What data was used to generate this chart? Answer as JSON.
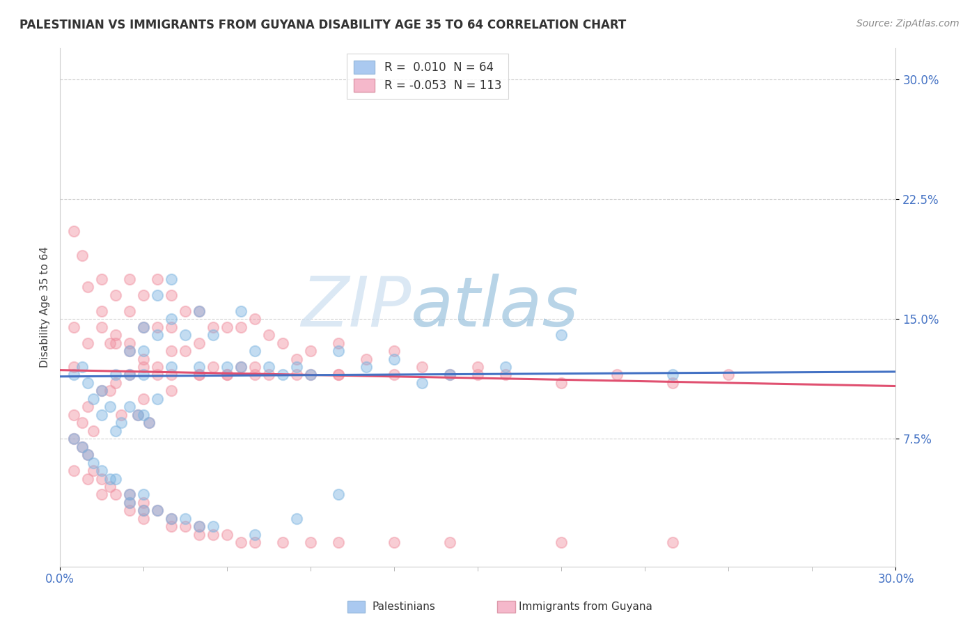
{
  "title": "PALESTINIAN VS IMMIGRANTS FROM GUYANA DISABILITY AGE 35 TO 64 CORRELATION CHART",
  "source": "Source: ZipAtlas.com",
  "ylabel": "Disability Age 35 to 64",
  "ytick_vals": [
    0.075,
    0.15,
    0.225,
    0.3
  ],
  "xlim": [
    0.0,
    0.3
  ],
  "ylim": [
    -0.005,
    0.32
  ],
  "legend1_label": "R =  0.010  N = 64",
  "legend2_label": "R = -0.053  N = 113",
  "legend1_color": "#aac9f0",
  "legend2_color": "#f5b8cb",
  "dot_color_blue": "#7ab3e0",
  "dot_color_pink": "#f090a0",
  "trend_color_blue": "#4472c4",
  "trend_color_pink": "#e05070",
  "watermark_zip": "ZIP",
  "watermark_atlas": "atlas",
  "blue_trend_start_y": 0.114,
  "blue_trend_end_y": 0.117,
  "pink_trend_start_y": 0.118,
  "pink_trend_end_y": 0.108,
  "blue_x": [
    0.005,
    0.008,
    0.01,
    0.012,
    0.015,
    0.015,
    0.018,
    0.02,
    0.02,
    0.022,
    0.025,
    0.025,
    0.025,
    0.028,
    0.03,
    0.03,
    0.03,
    0.03,
    0.032,
    0.035,
    0.035,
    0.035,
    0.04,
    0.04,
    0.04,
    0.045,
    0.05,
    0.05,
    0.055,
    0.06,
    0.065,
    0.065,
    0.07,
    0.075,
    0.08,
    0.085,
    0.09,
    0.1,
    0.11,
    0.12,
    0.13,
    0.14,
    0.16,
    0.18,
    0.22,
    0.005,
    0.008,
    0.01,
    0.012,
    0.015,
    0.018,
    0.02,
    0.025,
    0.025,
    0.03,
    0.03,
    0.035,
    0.04,
    0.045,
    0.05,
    0.055,
    0.07,
    0.085,
    0.1
  ],
  "blue_y": [
    0.115,
    0.12,
    0.11,
    0.1,
    0.105,
    0.09,
    0.095,
    0.08,
    0.115,
    0.085,
    0.13,
    0.115,
    0.095,
    0.09,
    0.145,
    0.13,
    0.115,
    0.09,
    0.085,
    0.165,
    0.14,
    0.1,
    0.175,
    0.15,
    0.12,
    0.14,
    0.155,
    0.12,
    0.14,
    0.12,
    0.155,
    0.12,
    0.13,
    0.12,
    0.115,
    0.12,
    0.115,
    0.13,
    0.12,
    0.125,
    0.11,
    0.115,
    0.12,
    0.14,
    0.115,
    0.075,
    0.07,
    0.065,
    0.06,
    0.055,
    0.05,
    0.05,
    0.04,
    0.035,
    0.04,
    0.03,
    0.03,
    0.025,
    0.025,
    0.02,
    0.02,
    0.015,
    0.025,
    0.04
  ],
  "pink_x": [
    0.005,
    0.005,
    0.005,
    0.008,
    0.01,
    0.01,
    0.012,
    0.015,
    0.015,
    0.015,
    0.018,
    0.018,
    0.02,
    0.02,
    0.02,
    0.022,
    0.025,
    0.025,
    0.025,
    0.025,
    0.028,
    0.03,
    0.03,
    0.03,
    0.03,
    0.032,
    0.035,
    0.035,
    0.035,
    0.04,
    0.04,
    0.04,
    0.04,
    0.045,
    0.045,
    0.05,
    0.05,
    0.05,
    0.055,
    0.055,
    0.06,
    0.06,
    0.065,
    0.065,
    0.07,
    0.07,
    0.075,
    0.075,
    0.08,
    0.085,
    0.09,
    0.09,
    0.1,
    0.1,
    0.11,
    0.12,
    0.13,
    0.14,
    0.15,
    0.16,
    0.18,
    0.2,
    0.22,
    0.24,
    0.005,
    0.008,
    0.01,
    0.012,
    0.015,
    0.018,
    0.02,
    0.025,
    0.025,
    0.03,
    0.03,
    0.035,
    0.04,
    0.045,
    0.05,
    0.055,
    0.06,
    0.065,
    0.07,
    0.08,
    0.09,
    0.1,
    0.12,
    0.14,
    0.18,
    0.22,
    0.005,
    0.008,
    0.01,
    0.015,
    0.02,
    0.025,
    0.03,
    0.035,
    0.04,
    0.05,
    0.06,
    0.07,
    0.085,
    0.1,
    0.12,
    0.15,
    0.005,
    0.01,
    0.015,
    0.025,
    0.03,
    0.04,
    0.05
  ],
  "pink_y": [
    0.145,
    0.12,
    0.09,
    0.085,
    0.135,
    0.095,
    0.08,
    0.175,
    0.145,
    0.105,
    0.135,
    0.105,
    0.165,
    0.135,
    0.11,
    0.09,
    0.175,
    0.155,
    0.135,
    0.115,
    0.09,
    0.165,
    0.145,
    0.125,
    0.1,
    0.085,
    0.175,
    0.145,
    0.12,
    0.165,
    0.145,
    0.13,
    0.105,
    0.155,
    0.13,
    0.155,
    0.135,
    0.115,
    0.145,
    0.12,
    0.145,
    0.115,
    0.145,
    0.12,
    0.15,
    0.12,
    0.14,
    0.115,
    0.135,
    0.125,
    0.13,
    0.115,
    0.135,
    0.115,
    0.125,
    0.13,
    0.12,
    0.115,
    0.12,
    0.115,
    0.11,
    0.115,
    0.11,
    0.115,
    0.075,
    0.07,
    0.065,
    0.055,
    0.05,
    0.045,
    0.04,
    0.04,
    0.035,
    0.035,
    0.03,
    0.03,
    0.025,
    0.02,
    0.02,
    0.015,
    0.015,
    0.01,
    0.01,
    0.01,
    0.01,
    0.01,
    0.01,
    0.01,
    0.01,
    0.01,
    0.205,
    0.19,
    0.17,
    0.155,
    0.14,
    0.13,
    0.12,
    0.115,
    0.115,
    0.115,
    0.115,
    0.115,
    0.115,
    0.115,
    0.115,
    0.115,
    0.055,
    0.05,
    0.04,
    0.03,
    0.025,
    0.02,
    0.015
  ]
}
